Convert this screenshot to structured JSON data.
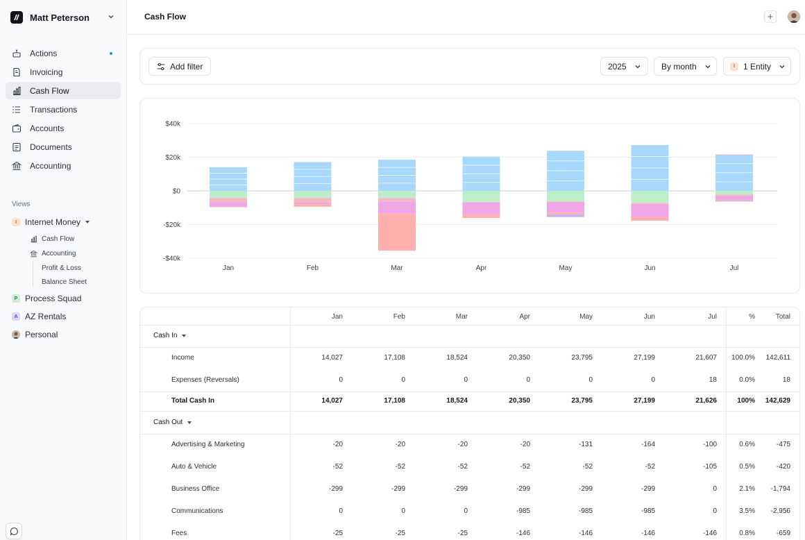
{
  "workspace": {
    "name": "Matt Peterson"
  },
  "nav": [
    {
      "label": "Actions",
      "icon": "robot-icon"
    },
    {
      "label": "Invoicing",
      "icon": "invoice-icon"
    },
    {
      "label": "Cash Flow",
      "icon": "bar-chart-icon",
      "active": true
    },
    {
      "label": "Transactions",
      "icon": "list-icon"
    },
    {
      "label": "Accounts",
      "icon": "wallet-icon"
    },
    {
      "label": "Documents",
      "icon": "document-icon"
    },
    {
      "label": "Accounting",
      "icon": "bank-icon"
    }
  ],
  "views": {
    "title": "Views",
    "items": [
      {
        "label": "Internet Money",
        "badge": "I",
        "badge_bg": "#fbe1cc",
        "badge_fg": "#b5612a"
      },
      {
        "label": "Process Squad",
        "badge": "P",
        "badge_bg": "#cdeed5",
        "badge_fg": "#2c7a41"
      },
      {
        "label": "AZ Rentals",
        "badge": "A",
        "badge_bg": "#ddd6fb",
        "badge_fg": "#5c47b8"
      },
      {
        "label": "Personal",
        "badge": ""
      }
    ],
    "sub": [
      "Cash Flow",
      "Accounting",
      "Profit & Loss",
      "Balance Sheet"
    ]
  },
  "header": {
    "title": "Cash Flow"
  },
  "filters": {
    "add_filter": "Add filter",
    "year": "2025",
    "period": "By month",
    "entity": "1 Entity",
    "entity_badge": "I"
  },
  "chart_data": {
    "type": "bar",
    "stacked": true,
    "categories": [
      "Jan",
      "Feb",
      "Mar",
      "Apr",
      "May",
      "Jun",
      "Jul"
    ],
    "ylim": [
      -40000,
      40000
    ],
    "yticks": [
      "$40k",
      "$20k",
      "$0",
      "-$20k",
      "-$40k"
    ],
    "series": [
      {
        "values": [
          14027,
          17108,
          18524,
          20350,
          23795,
          27199,
          21607
        ],
        "color": "#a8d8fb"
      },
      {
        "values": [
          0,
          0,
          0,
          0,
          0,
          0,
          18
        ],
        "color": "#f9a8d4"
      },
      {
        "values": [
          -4200,
          -4200,
          -4300,
          -6500,
          -6300,
          -7200,
          -2100
        ],
        "color": "#bdeec9"
      },
      {
        "values": [
          -2600,
          -2800,
          -2000,
          -400,
          -500,
          -700,
          -900
        ],
        "color": "#f3b9c0"
      },
      {
        "values": [
          -2600,
          -900,
          -7200,
          -7100,
          -6100,
          -7600,
          -2200
        ],
        "color": "#efa6e6"
      },
      {
        "values": [
          -300,
          -1500,
          -22000,
          -2100,
          -1300,
          -2200,
          -600
        ],
        "color": "#ffb0ad"
      },
      {
        "values": [
          0,
          0,
          0,
          0,
          -1300,
          0,
          -500
        ],
        "color": "#b7b5f5"
      }
    ]
  },
  "table": {
    "columns": [
      "Jan",
      "Feb",
      "Mar",
      "Apr",
      "May",
      "Jun",
      "Jul"
    ],
    "pct_label": "%",
    "total_label": "Total",
    "cash_in": {
      "label": "Cash In",
      "rows": [
        {
          "name": "Income",
          "values": [
            "14,027",
            "17,108",
            "18,524",
            "20,350",
            "23,795",
            "27,199",
            "21,607"
          ],
          "pct": "100.0%",
          "total": "142,611"
        },
        {
          "name": "Expenses (Reversals)",
          "values": [
            "0",
            "0",
            "0",
            "0",
            "0",
            "0",
            "18"
          ],
          "pct": "0.0%",
          "total": "18"
        }
      ],
      "total_row": {
        "name": "Total Cash In",
        "values": [
          "14,027",
          "17,108",
          "18,524",
          "20,350",
          "23,795",
          "27,199",
          "21,626"
        ],
        "pct": "100%",
        "total": "142,629"
      }
    },
    "cash_out": {
      "label": "Cash Out",
      "rows": [
        {
          "name": "Advertising & Marketing",
          "values": [
            "-20",
            "-20",
            "-20",
            "-20",
            "-131",
            "-164",
            "-100"
          ],
          "pct": "0.6%",
          "total": "-475"
        },
        {
          "name": "Auto & Vehicle",
          "values": [
            "-52",
            "-52",
            "-52",
            "-52",
            "-52",
            "-52",
            "-105"
          ],
          "pct": "0.5%",
          "total": "-420"
        },
        {
          "name": "Business Office",
          "values": [
            "-299",
            "-299",
            "-299",
            "-299",
            "-299",
            "-299",
            "0"
          ],
          "pct": "2.1%",
          "total": "-1,794"
        },
        {
          "name": "Communications",
          "values": [
            "0",
            "0",
            "0",
            "-985",
            "-985",
            "-985",
            "0"
          ],
          "pct": "3.5%",
          "total": "-2,956"
        },
        {
          "name": "Fees",
          "values": [
            "-25",
            "-25",
            "-25",
            "-146",
            "-146",
            "-146",
            "-146"
          ],
          "pct": "0.8%",
          "total": "-659"
        }
      ]
    }
  }
}
